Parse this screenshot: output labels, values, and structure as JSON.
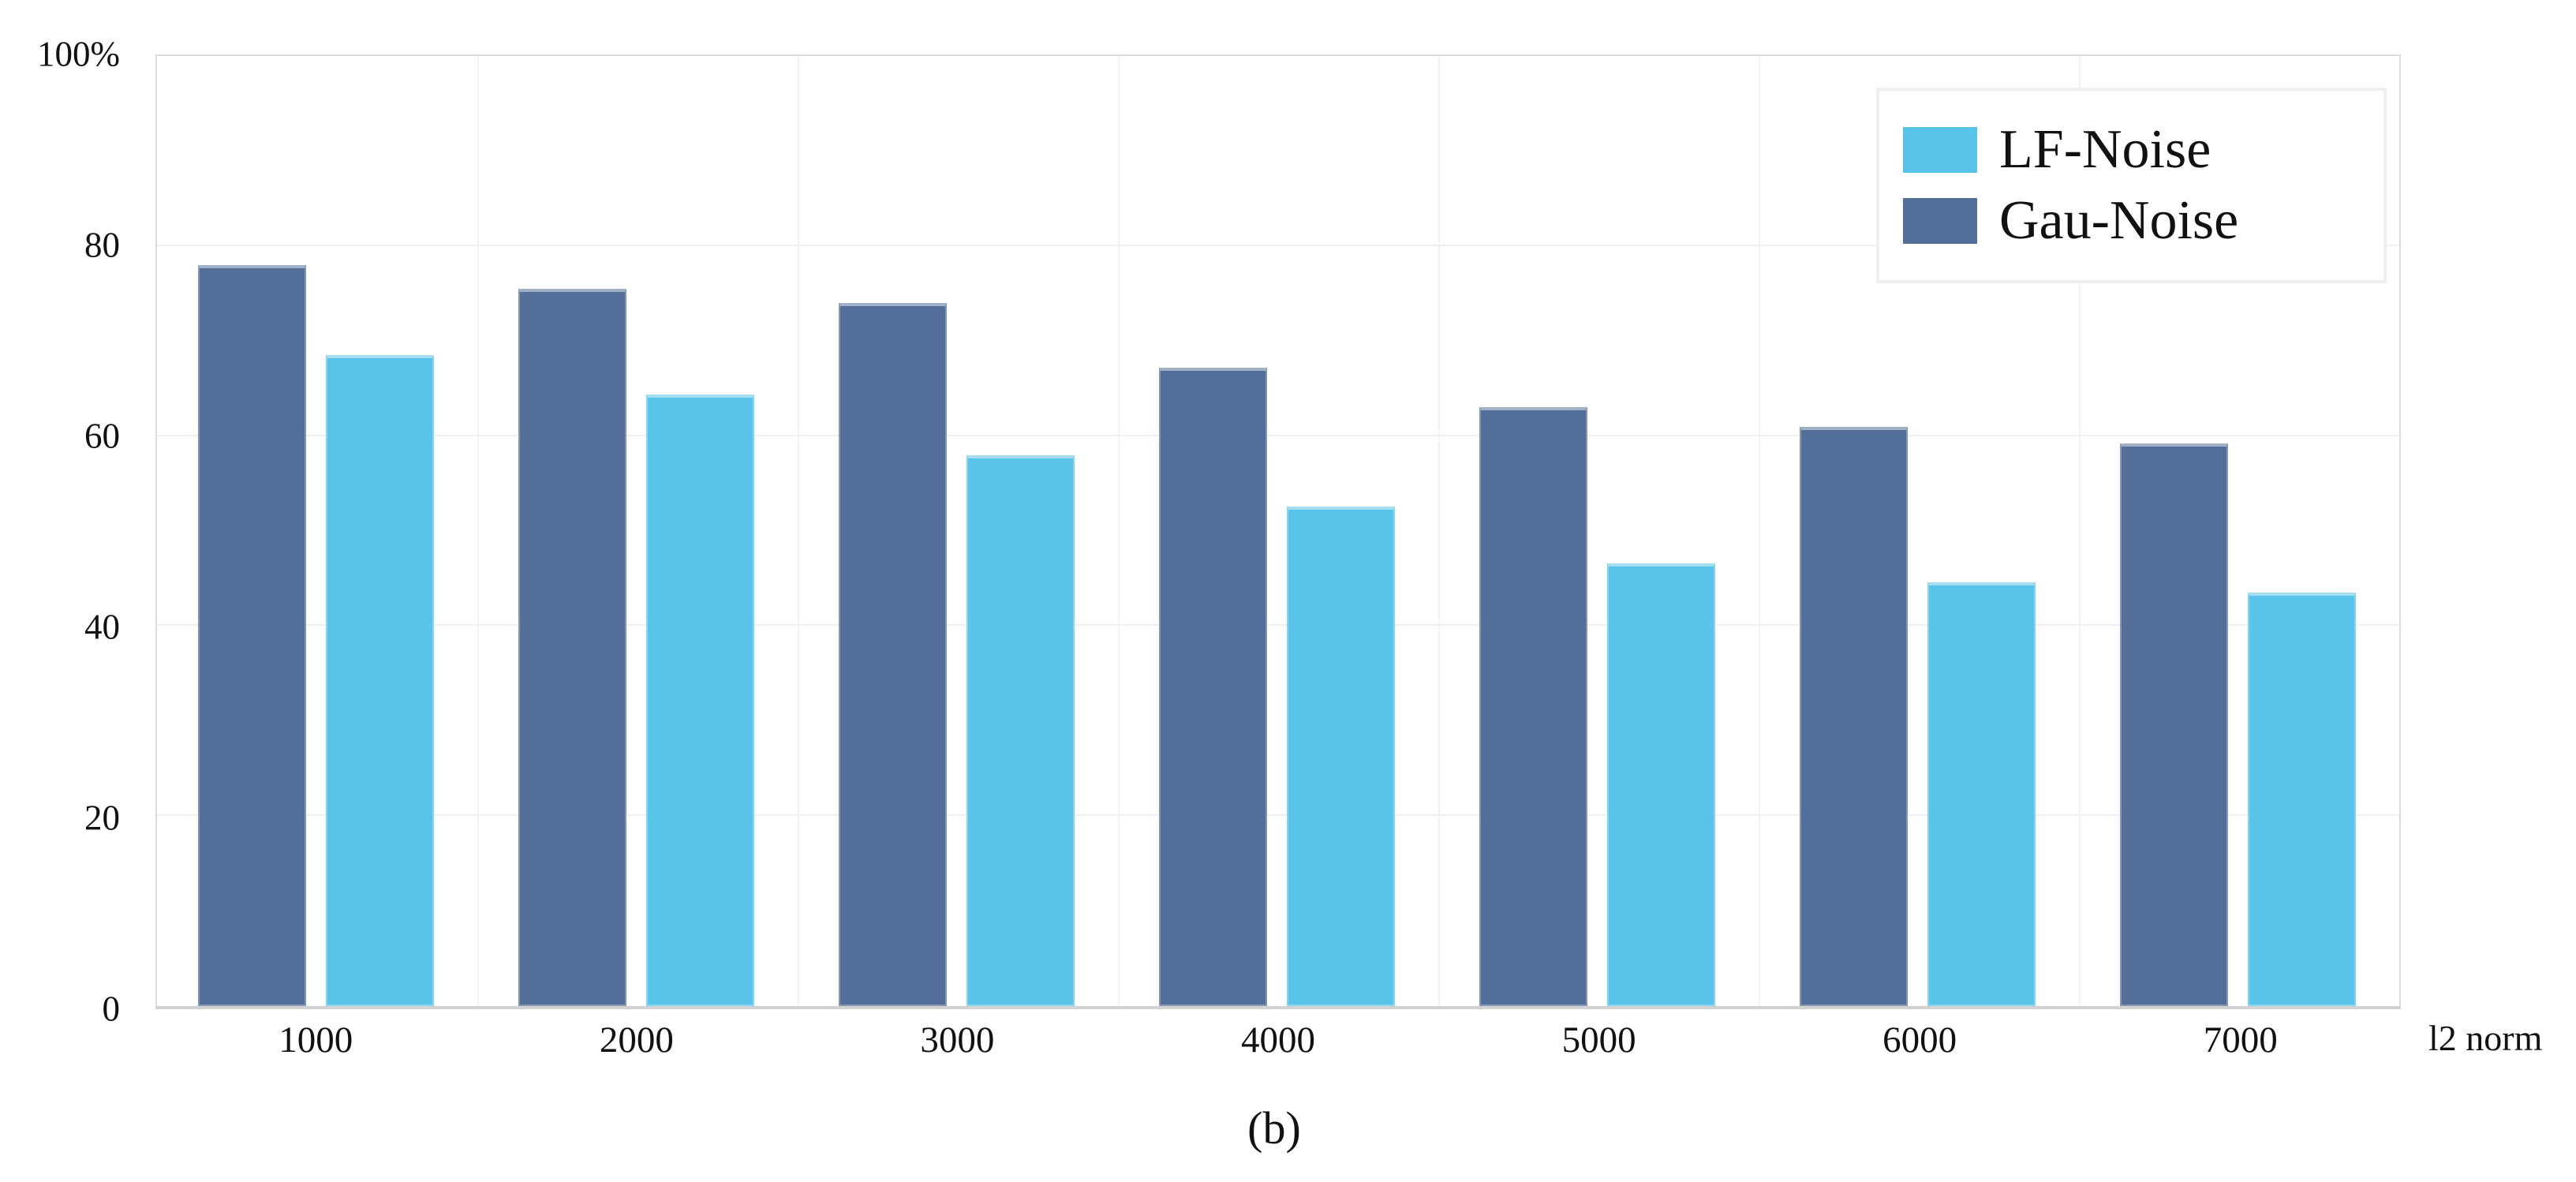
{
  "figure": {
    "caption": "(b)"
  },
  "chart_data": {
    "type": "bar",
    "title": "",
    "categories": [
      "1000",
      "2000",
      "3000",
      "4000",
      "5000",
      "6000",
      "7000"
    ],
    "series": [
      {
        "name": "LF-Noise",
        "color": "#59C4E9",
        "values": [
          68.5,
          64.4,
          58.0,
          52.6,
          46.6,
          44.6,
          43.5
        ]
      },
      {
        "name": "Gau-Noise",
        "color": "#536F99",
        "values": [
          78.0,
          75.5,
          74.0,
          67.2,
          63.0,
          61.0,
          59.2
        ]
      }
    ],
    "group_bar_order": [
      "Gau-Noise",
      "LF-Noise"
    ],
    "xlabel": "l2 norm",
    "ylabel": "",
    "ylim": [
      0,
      100
    ],
    "y_ticks": [
      {
        "value": 0,
        "label": "0"
      },
      {
        "value": 20,
        "label": "20"
      },
      {
        "value": 40,
        "label": "40"
      },
      {
        "value": 60,
        "label": "60"
      },
      {
        "value": 80,
        "label": "80"
      },
      {
        "value": 100,
        "label": "100%"
      }
    ],
    "grid": true,
    "legend_position": "upper right",
    "legend": [
      "LF-Noise",
      "Gau-Noise"
    ]
  },
  "colors": {
    "grid": "#efefef",
    "frame": "#dcdcdc",
    "background": "#ffffff"
  }
}
